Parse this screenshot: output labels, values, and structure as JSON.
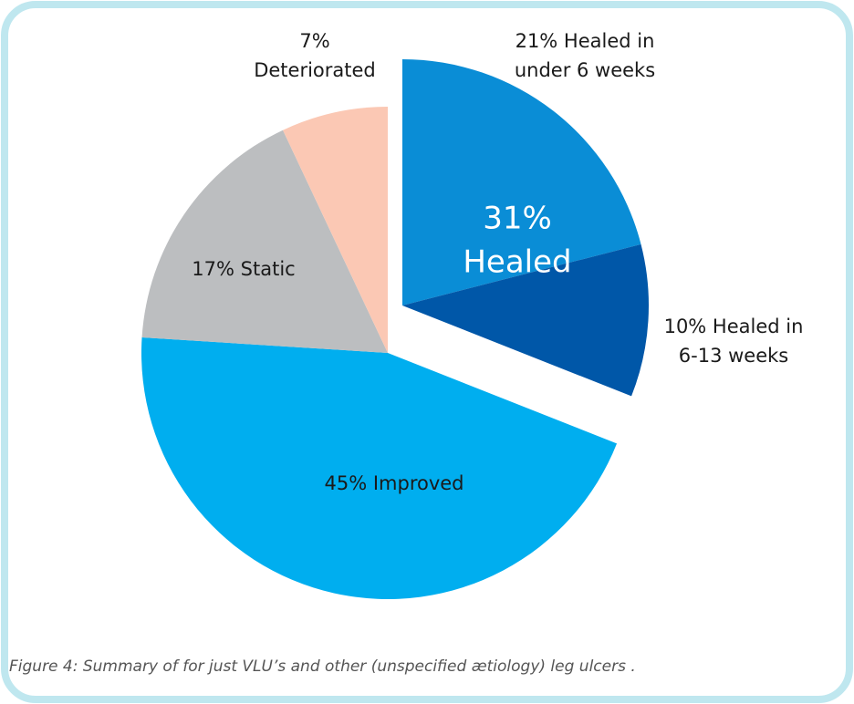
{
  "chart_data": {
    "type": "pie",
    "values": [
      21,
      10,
      45,
      17,
      7
    ],
    "value_labels": [
      [
        "21% Healed in",
        "under 6 weeks"
      ],
      [
        "10% Healed in",
        "6-13 weeks"
      ],
      [
        "45% Improved"
      ],
      [
        "17% Static"
      ],
      [
        "7%",
        "Deteriorated"
      ]
    ],
    "colors": [
      "#0a8dd6",
      "#0057a8",
      "#00aeef",
      "#bcbec0",
      "#fbc8b4"
    ],
    "group": {
      "value": 31,
      "label": "31%",
      "text": "Healed"
    },
    "caption": "Figure 4: Summary of for  just VLU’s and other (unspecified ætiology) leg ulcers ."
  }
}
